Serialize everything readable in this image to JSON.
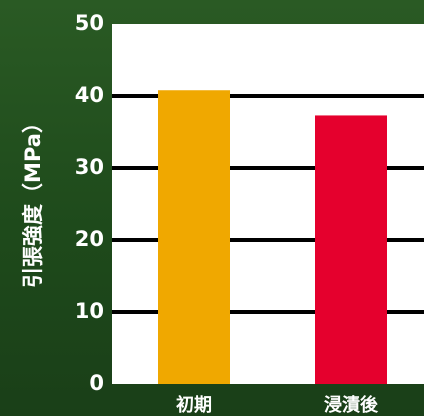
{
  "chart_data": {
    "type": "bar",
    "title": "",
    "xlabel": "",
    "ylabel": "引張強度（MPa）",
    "categories": [
      "初期",
      "浸漬後"
    ],
    "values": [
      40.8,
      37.3
    ],
    "ylim": [
      0,
      50
    ],
    "yticks": [
      0,
      10,
      20,
      30,
      40,
      50
    ],
    "ytick_labels": [
      "0",
      "10",
      "20",
      "30",
      "40",
      "50"
    ],
    "grid": true,
    "legend": "none",
    "colors": {
      "bars": [
        "#f0a800",
        "#e5002d"
      ],
      "plot_background": "#ffffff",
      "gridline": "#000000",
      "text": "#ffffff"
    }
  }
}
